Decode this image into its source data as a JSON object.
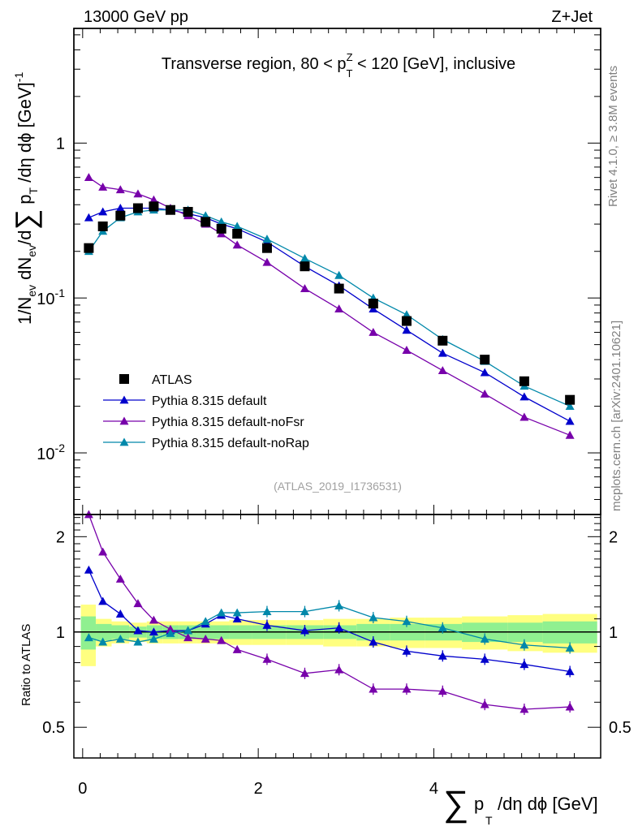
{
  "header": {
    "left": "13000 GeV pp",
    "right": "Z+Jet"
  },
  "side_labels": {
    "rivet": "Rivet 4.1.0, ≥ 3.8M events",
    "mcplots": "mcplots.cern.ch [arXiv:2401.10621]"
  },
  "chart_data": {
    "type": "line",
    "title": "Transverse region, 80 < p_T^Z < 120 [GeV], inclusive",
    "watermark": "(ATLAS_2019_I1736531)",
    "xlabel": "Σ p_T/dη dϕ [GeV]",
    "ylabel": "1/N_ev dN_ev/dΣ p_T/dη dϕ [GeV]^-1",
    "ratio_ylabel": "Ratio to ATLAS",
    "xlim": [
      -0.1,
      5.9
    ],
    "ylim": [
      0.004,
      5.5
    ],
    "ratio_ylim": [
      0.4,
      2.35
    ],
    "x_ticks": [
      "0",
      "2",
      "4"
    ],
    "y_ticks": [
      "1",
      "10^-1",
      "10^-2"
    ],
    "ratio_ticks": [
      "0.5",
      "1",
      "2"
    ],
    "x": [
      0.07,
      0.23,
      0.43,
      0.63,
      0.81,
      1.0,
      1.2,
      1.4,
      1.58,
      1.76,
      2.1,
      2.53,
      2.92,
      3.31,
      3.69,
      4.1,
      4.58,
      5.03,
      5.55
    ],
    "data": {
      "name": "ATLAS",
      "values": [
        0.21,
        0.29,
        0.34,
        0.38,
        0.39,
        0.37,
        0.36,
        0.31,
        0.28,
        0.26,
        0.21,
        0.16,
        0.115,
        0.092,
        0.071,
        0.053,
        0.04,
        0.029,
        0.022
      ]
    },
    "series": [
      {
        "name": "Pythia 8.315 default",
        "color": "#0000cc",
        "values": [
          0.33,
          0.36,
          0.38,
          0.38,
          0.38,
          0.37,
          0.35,
          0.33,
          0.3,
          0.28,
          0.23,
          0.16,
          0.12,
          0.085,
          0.062,
          0.044,
          0.033,
          0.023,
          0.016
        ],
        "ratio": [
          1.57,
          1.25,
          1.14,
          1.01,
          1.0,
          1.01,
          1.01,
          1.06,
          1.13,
          1.1,
          1.05,
          1.01,
          1.03,
          0.93,
          0.87,
          0.84,
          0.82,
          0.79,
          0.75
        ]
      },
      {
        "name": "Pythia 8.315 default-noFsr",
        "color": "#7700aa",
        "values": [
          0.6,
          0.52,
          0.5,
          0.47,
          0.43,
          0.38,
          0.34,
          0.3,
          0.26,
          0.22,
          0.17,
          0.115,
          0.085,
          0.06,
          0.046,
          0.034,
          0.024,
          0.017,
          0.013
        ],
        "ratio": [
          2.35,
          1.79,
          1.47,
          1.23,
          1.09,
          1.02,
          0.96,
          0.95,
          0.94,
          0.88,
          0.82,
          0.74,
          0.76,
          0.66,
          0.66,
          0.65,
          0.59,
          0.57,
          0.58
        ]
      },
      {
        "name": "Pythia 8.315 default-noRap",
        "color": "#0088aa",
        "values": [
          0.2,
          0.27,
          0.33,
          0.36,
          0.37,
          0.37,
          0.37,
          0.34,
          0.31,
          0.29,
          0.24,
          0.18,
          0.14,
          0.1,
          0.078,
          0.054,
          0.039,
          0.027,
          0.02
        ],
        "ratio": [
          0.96,
          0.93,
          0.95,
          0.93,
          0.95,
          0.99,
          1.01,
          1.08,
          1.15,
          1.15,
          1.16,
          1.16,
          1.21,
          1.11,
          1.08,
          1.03,
          0.95,
          0.91,
          0.89
        ]
      }
    ],
    "legend": [
      "ATLAS",
      "Pythia 8.315 default",
      "Pythia 8.315 default-noFsr",
      "Pythia 8.315 default-noRap"
    ],
    "band_edges": [
      -0.02,
      0.15,
      0.33,
      0.53,
      0.73,
      0.91,
      1.1,
      1.3,
      1.49,
      1.67,
      1.93,
      2.32,
      2.74,
      3.12,
      3.5,
      3.9,
      4.32,
      4.84,
      5.24,
      5.86
    ],
    "band_inner": [
      0.12,
      0.06,
      0.05,
      0.04,
      0.05,
      0.05,
      0.05,
      0.05,
      0.05,
      0.05,
      0.05,
      0.05,
      0.05,
      0.06,
      0.06,
      0.06,
      0.07,
      0.07,
      0.08
    ],
    "band_outer": [
      0.22,
      0.1,
      0.08,
      0.07,
      0.08,
      0.08,
      0.08,
      0.08,
      0.08,
      0.09,
      0.09,
      0.09,
      0.1,
      0.1,
      0.11,
      0.11,
      0.12,
      0.13,
      0.14
    ]
  }
}
